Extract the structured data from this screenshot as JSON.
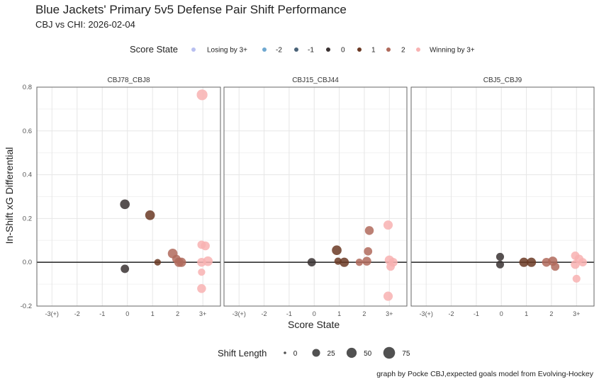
{
  "chart_data": {
    "type": "scatter",
    "title": "Blue Jackets' Primary 5v5 Defense Pair Shift Performance",
    "subtitle": "CBJ vs CHI: 2026-02-04",
    "xlabel": "Score State",
    "ylabel": "In-Shift xG Differential",
    "x_tick_labels": [
      "-3(+)",
      "-2",
      "-1",
      "0",
      "1",
      "2",
      "3+"
    ],
    "x_tick_values": [
      -3,
      -2,
      -1,
      0,
      1,
      2,
      3
    ],
    "y_ticks": [
      "-0.2",
      "0.0",
      "0.2",
      "0.4",
      "0.6",
      "0.8"
    ],
    "y_tick_values": [
      -0.2,
      0,
      0.2,
      0.4,
      0.6,
      0.8
    ],
    "ylim": [
      -0.2,
      0.8
    ],
    "xlim": [
      -3.6,
      3.7
    ],
    "grid": true,
    "color_legend": {
      "title": "Score State",
      "placement": "top",
      "entries": [
        {
          "label": "Losing by 3+",
          "color": "#b8bff0"
        },
        {
          "label": "-2",
          "color": "#6fa8d0"
        },
        {
          "label": "-1",
          "color": "#4a6378"
        },
        {
          "label": "0",
          "color": "#3a3232"
        },
        {
          "label": "1",
          "color": "#6b3a25"
        },
        {
          "label": "2",
          "color": "#b06a5c"
        },
        {
          "label": "Winning by 3+",
          "color": "#f8b2b2"
        }
      ]
    },
    "size_legend": {
      "title": "Shift Length",
      "placement": "bottom",
      "values": [
        0,
        25,
        50,
        75
      ]
    },
    "caption": "graph by Pocke CBJ,expected goals model from Evolving-Hockey",
    "panels": [
      {
        "name": "CBJ78_CBJ8",
        "points": [
          {
            "x": -0.1,
            "y": 0.265,
            "len": 45,
            "state": 3
          },
          {
            "x": -0.1,
            "y": -0.03,
            "len": 30,
            "state": 3
          },
          {
            "x": 0.9,
            "y": 0.215,
            "len": 45,
            "state": 4
          },
          {
            "x": 1.2,
            "y": 0.0,
            "len": 15,
            "state": 4
          },
          {
            "x": 1.8,
            "y": 0.04,
            "len": 45,
            "state": 5
          },
          {
            "x": 1.95,
            "y": 0.015,
            "len": 30,
            "state": 5
          },
          {
            "x": 2.05,
            "y": 0.0,
            "len": 40,
            "state": 5
          },
          {
            "x": 2.15,
            "y": 0.0,
            "len": 40,
            "state": 5
          },
          {
            "x": 2.97,
            "y": 0.765,
            "len": 60,
            "state": 6
          },
          {
            "x": 2.95,
            "y": 0.08,
            "len": 30,
            "state": 6
          },
          {
            "x": 3.1,
            "y": 0.075,
            "len": 35,
            "state": 6
          },
          {
            "x": 2.95,
            "y": 0.0,
            "len": 35,
            "state": 6
          },
          {
            "x": 3.2,
            "y": 0.005,
            "len": 45,
            "state": 6
          },
          {
            "x": 2.95,
            "y": -0.045,
            "len": 20,
            "state": 6
          },
          {
            "x": 2.95,
            "y": -0.12,
            "len": 35,
            "state": 6
          }
        ]
      },
      {
        "name": "CBJ15_CBJ44",
        "points": [
          {
            "x": -0.1,
            "y": 0.0,
            "len": 30,
            "state": 3
          },
          {
            "x": 0.9,
            "y": 0.055,
            "len": 45,
            "state": 4
          },
          {
            "x": 0.95,
            "y": 0.005,
            "len": 20,
            "state": 4
          },
          {
            "x": 1.2,
            "y": 0.0,
            "len": 40,
            "state": 4
          },
          {
            "x": 1.8,
            "y": 0.0,
            "len": 20,
            "state": 5
          },
          {
            "x": 2.1,
            "y": 0.005,
            "len": 35,
            "state": 5
          },
          {
            "x": 2.2,
            "y": 0.145,
            "len": 35,
            "state": 5
          },
          {
            "x": 2.15,
            "y": 0.05,
            "len": 30,
            "state": 5
          },
          {
            "x": 2.95,
            "y": 0.17,
            "len": 40,
            "state": 6
          },
          {
            "x": 3.0,
            "y": 0.01,
            "len": 40,
            "state": 6
          },
          {
            "x": 3.15,
            "y": 0.0,
            "len": 35,
            "state": 6
          },
          {
            "x": 3.05,
            "y": -0.02,
            "len": 30,
            "state": 6
          },
          {
            "x": 2.95,
            "y": -0.155,
            "len": 40,
            "state": 6
          }
        ]
      },
      {
        "name": "CBJ5_CBJ9",
        "points": [
          {
            "x": -0.05,
            "y": 0.025,
            "len": 25,
            "state": 3
          },
          {
            "x": -0.05,
            "y": -0.01,
            "len": 25,
            "state": 3
          },
          {
            "x": 0.9,
            "y": 0.0,
            "len": 40,
            "state": 4
          },
          {
            "x": 1.2,
            "y": 0.0,
            "len": 40,
            "state": 4
          },
          {
            "x": 1.8,
            "y": 0.0,
            "len": 35,
            "state": 5
          },
          {
            "x": 2.05,
            "y": 0.005,
            "len": 40,
            "state": 5
          },
          {
            "x": 2.15,
            "y": -0.02,
            "len": 30,
            "state": 5
          },
          {
            "x": 2.95,
            "y": 0.03,
            "len": 30,
            "state": 6
          },
          {
            "x": 3.1,
            "y": 0.015,
            "len": 35,
            "state": 6
          },
          {
            "x": 3.25,
            "y": 0.0,
            "len": 30,
            "state": 6
          },
          {
            "x": 2.95,
            "y": -0.01,
            "len": 35,
            "state": 6
          },
          {
            "x": 3.0,
            "y": -0.075,
            "len": 25,
            "state": 6
          }
        ]
      }
    ]
  }
}
